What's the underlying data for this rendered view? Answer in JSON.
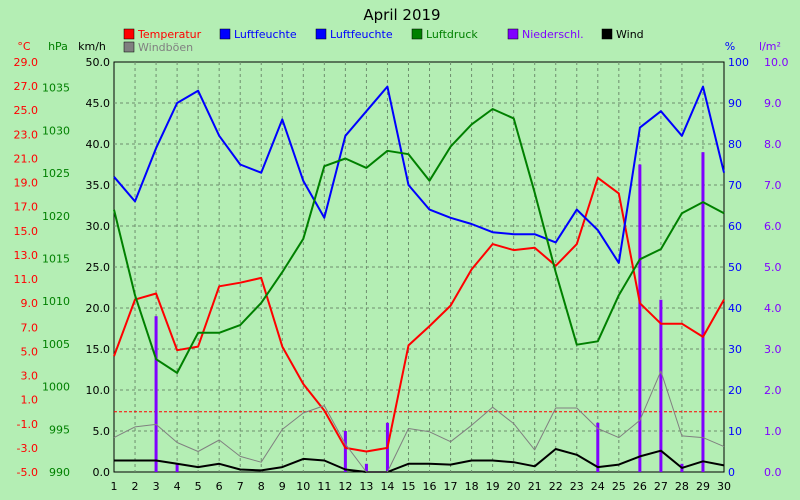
{
  "chart_data": {
    "type": "line",
    "title": "April 2019",
    "x": [
      1,
      2,
      3,
      4,
      5,
      6,
      7,
      8,
      9,
      10,
      11,
      12,
      13,
      14,
      15,
      16,
      17,
      18,
      19,
      20,
      21,
      22,
      23,
      24,
      25,
      26,
      27,
      28,
      29,
      30
    ],
    "axes": {
      "temp": {
        "unit": "°C",
        "color": "#ff0000",
        "ticks": [
          29.0,
          27.0,
          25.0,
          23.0,
          21.0,
          19.0,
          17.0,
          15.0,
          13.0,
          11.0,
          9.0,
          7.0,
          5.0,
          3.0,
          1.0,
          -1.0,
          -3.0,
          -5.0
        ],
        "ylim": [
          -5.0,
          29.0
        ]
      },
      "press": {
        "unit": "hPa",
        "color": "#008000",
        "ticks": [
          1035,
          1030,
          1025,
          1020,
          1015,
          1010,
          1005,
          1000,
          995,
          990
        ],
        "ylim": [
          990,
          1038
        ]
      },
      "speed": {
        "unit": "km/h",
        "color": "#000000",
        "ticks": [
          50.0,
          45.0,
          40.0,
          35.0,
          30.0,
          25.0,
          20.0,
          15.0,
          10.0,
          5.0,
          0.0
        ],
        "ylim": [
          0,
          50
        ]
      },
      "hum": {
        "unit": "%",
        "color": "#0000ff",
        "ticks": [
          100,
          90,
          80,
          70,
          60,
          50,
          40,
          30,
          20,
          10,
          0
        ],
        "ylim": [
          0,
          100
        ]
      },
      "rain": {
        "unit": "l/m²",
        "color": "#8000ff",
        "ticks": [
          10.0,
          9.0,
          8.0,
          7.0,
          6.0,
          5.0,
          4.0,
          3.0,
          2.0,
          1.0,
          0.0
        ],
        "ylim": [
          0,
          10
        ]
      }
    },
    "grid": true,
    "legend": [
      {
        "name": "Temperatur",
        "color": "#ff0000"
      },
      {
        "name": "Luftfeuchte",
        "color": "#0000ff"
      },
      {
        "name": "Luftfeuchte",
        "color": "#0000ff"
      },
      {
        "name": "Luftdruck",
        "color": "#008000"
      },
      {
        "name": "Niederschl.",
        "color": "#8000ff"
      },
      {
        "name": "Wind",
        "color": "#000000"
      },
      {
        "name": "Windböen",
        "color": "#808080"
      }
    ],
    "series": [
      {
        "key": "temperatur",
        "axis": "temp",
        "color": "#ff0000",
        "values": [
          4.6,
          9.3,
          9.8,
          5.1,
          5.4,
          10.4,
          10.7,
          11.1,
          5.4,
          2.3,
          0.1,
          -3.0,
          -3.3,
          -3.0,
          5.5,
          7.1,
          8.8,
          11.8,
          13.9,
          13.4,
          13.6,
          12.1,
          13.9,
          19.4,
          18.1,
          9.0,
          7.3,
          7.3,
          6.2,
          9.3
        ]
      },
      {
        "key": "luftfeuchte",
        "axis": "hum",
        "color": "#0000ff",
        "values": [
          72,
          66,
          79,
          90,
          93,
          82,
          75,
          73,
          86,
          71,
          62,
          82,
          88,
          94,
          70,
          64,
          62,
          60.5,
          58.5,
          58,
          58,
          56,
          64,
          59,
          51,
          84,
          88,
          82,
          94,
          73
        ]
      },
      {
        "key": "luftdruck",
        "axis": "press",
        "color": "#008000",
        "values": [
          1020.7,
          1010.7,
          1003.2,
          1001.6,
          1006.3,
          1006.3,
          1007.2,
          1009.8,
          1013.4,
          1017.3,
          1025.8,
          1026.7,
          1025.6,
          1027.6,
          1027.2,
          1024.1,
          1028.1,
          1030.7,
          1032.5,
          1031.4,
          1022.7,
          1013.4,
          1004.9,
          1005.3,
          1010.7,
          1014.9,
          1016.1,
          1020.3,
          1021.6,
          1020.3
        ]
      },
      {
        "key": "wind",
        "axis": "speed",
        "color": "#000000",
        "values": [
          1.4,
          1.4,
          1.4,
          1.0,
          0.6,
          1.0,
          0.3,
          0.2,
          0.6,
          1.6,
          1.4,
          0.3,
          0.0,
          0.0,
          1.0,
          1.0,
          0.9,
          1.4,
          1.4,
          1.2,
          0.7,
          2.8,
          2.1,
          0.6,
          0.9,
          1.9,
          2.6,
          0.5,
          1.3,
          0.8
        ]
      },
      {
        "key": "windboeen",
        "axis": "speed",
        "color": "#808080",
        "values": [
          4.2,
          5.5,
          5.8,
          3.6,
          2.5,
          3.9,
          1.9,
          1.2,
          5.2,
          7.2,
          8.1,
          3.4,
          0.0,
          0.0,
          5.3,
          4.9,
          3.7,
          5.7,
          7.9,
          5.9,
          2.7,
          7.8,
          7.8,
          5.3,
          4.2,
          6.3,
          12.3,
          4.4,
          4.2,
          3.1
        ]
      },
      {
        "key": "niederschlag",
        "axis": "rain",
        "color": "#8000ff",
        "type": "bar",
        "values": [
          0,
          0,
          3.8,
          0.2,
          0,
          0,
          0,
          0,
          0,
          0,
          0,
          1.0,
          0.2,
          1.2,
          0,
          0,
          0,
          0,
          0,
          0,
          0,
          0,
          0,
          1.2,
          0,
          7.5,
          4.2,
          0.2,
          7.8,
          0
        ]
      }
    ],
    "reference_lines": [
      {
        "axis": "temp",
        "value": 0.0,
        "color": "#ff0000",
        "style": "dashed"
      }
    ]
  }
}
